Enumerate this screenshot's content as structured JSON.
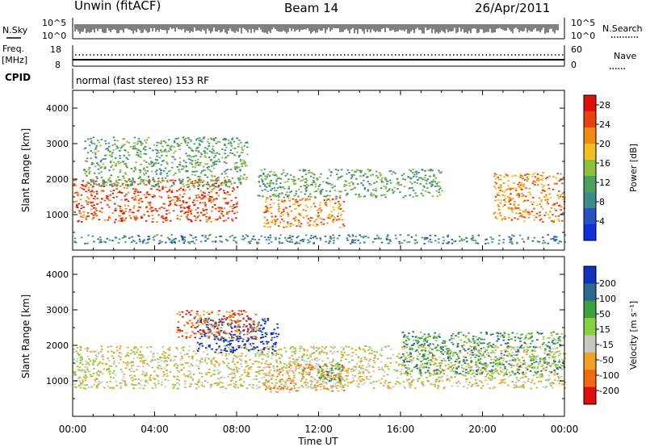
{
  "header": {
    "station": "Unwin (fitACF)",
    "beam": "Beam 14",
    "date": "26/Apr/2011"
  },
  "strips": {
    "nsky_label": "N.Sky",
    "nsky_ticks": [
      "10^5",
      "10^0"
    ],
    "nsearch_label": "N.Search",
    "nsearch_ticks": [
      "10^5",
      "10^0"
    ],
    "freq_label": "Freq.",
    "freq_unit": "[MHz]",
    "freq_ticks": [
      "18",
      "8"
    ],
    "nave_label": "Nave",
    "nave_ticks": [
      "60",
      "0"
    ],
    "cpid_label": "CPID",
    "cpid_text": "normal (fast stereo) 153 RF"
  },
  "chart_data": [
    {
      "type": "heatmap",
      "panel": "power",
      "ylabel": "Slant Range [km]",
      "xlabel": "",
      "ylim": [
        0,
        4500
      ],
      "y_ticks": [
        1000,
        2000,
        3000,
        4000
      ],
      "xlim": [
        0,
        24
      ],
      "x_ticks": [
        0,
        4,
        8,
        12,
        16,
        20,
        24
      ],
      "x_tick_labels": [
        "00:00",
        "04:00",
        "08:00",
        "12:00",
        "16:00",
        "20:00",
        "00:00"
      ],
      "colorbar": {
        "label": "Power [dB]",
        "ticks": [
          "4",
          "8",
          "12",
          "16",
          "20",
          "24",
          "28"
        ],
        "range": [
          0,
          30
        ],
        "colors": [
          "#1030e0",
          "#2a50c8",
          "#3f8a8a",
          "#4ea060",
          "#8cbf3a",
          "#f0c020",
          "#f28a10",
          "#e84010",
          "#e01010"
        ]
      },
      "regions": [
        {
          "name": "main F-region band",
          "t": [
            0,
            8
          ],
          "range_km": [
            800,
            2000
          ],
          "power_db": 25
        },
        {
          "name": "upper scatter",
          "t": [
            0.5,
            8.5
          ],
          "range_km": [
            1800,
            3200
          ],
          "power_db": 12
        },
        {
          "name": "mid-night patch",
          "t": [
            9.3,
            13.2
          ],
          "range_km": [
            650,
            1500
          ],
          "power_db": 22
        },
        {
          "name": "evening band",
          "t": [
            9,
            18
          ],
          "range_km": [
            1500,
            2300
          ],
          "power_db": 12
        },
        {
          "name": "late band",
          "t": [
            20.5,
            24
          ],
          "range_km": [
            800,
            2200
          ],
          "power_db": 24
        },
        {
          "name": "ground scatter",
          "t": [
            0,
            24
          ],
          "range_km": [
            200,
            450
          ],
          "power_db": 6
        }
      ]
    },
    {
      "type": "heatmap",
      "panel": "velocity",
      "ylabel": "Slant Range [km]",
      "xlabel": "Time UT",
      "ylim": [
        0,
        4500
      ],
      "y_ticks": [
        1000,
        2000,
        3000,
        4000
      ],
      "xlim": [
        0,
        24
      ],
      "x_ticks": [
        0,
        4,
        8,
        12,
        16,
        20,
        24
      ],
      "x_tick_labels": [
        "00:00",
        "04:00",
        "08:00",
        "12:00",
        "16:00",
        "20:00",
        "00:00"
      ],
      "colorbar": {
        "label": "Velocity [m s⁻¹]",
        "ticks": [
          "200",
          "100",
          "50",
          "15",
          "-15",
          "-50",
          "-100",
          "-200"
        ],
        "colors": [
          "#1030c0",
          "#2a6a90",
          "#3aa040",
          "#88d040",
          "#c8c8c0",
          "#f2a020",
          "#f26a10",
          "#e01010"
        ]
      },
      "regions": [
        {
          "name": "ground scatter band",
          "t": [
            0,
            24
          ],
          "range_km": [
            800,
            2000
          ],
          "velocity_m_s": 0
        },
        {
          "name": "mid-night patch",
          "t": [
            9.3,
            13.2
          ],
          "range_km": [
            700,
            1500
          ],
          "velocity_m_s": -40
        },
        {
          "name": "positive flow",
          "t": [
            12,
            13.2
          ],
          "range_km": [
            1000,
            1500
          ],
          "velocity_m_s": 60
        },
        {
          "name": "fast flow",
          "t": [
            6,
            10
          ],
          "range_km": [
            1800,
            2800
          ],
          "velocity_m_s": 200
        },
        {
          "name": "negative flow",
          "t": [
            5,
            9
          ],
          "range_km": [
            2200,
            3000
          ],
          "velocity_m_s": -150
        },
        {
          "name": "late positive flow",
          "t": [
            16,
            24
          ],
          "range_km": [
            1200,
            2400
          ],
          "velocity_m_s": 60
        }
      ]
    }
  ]
}
